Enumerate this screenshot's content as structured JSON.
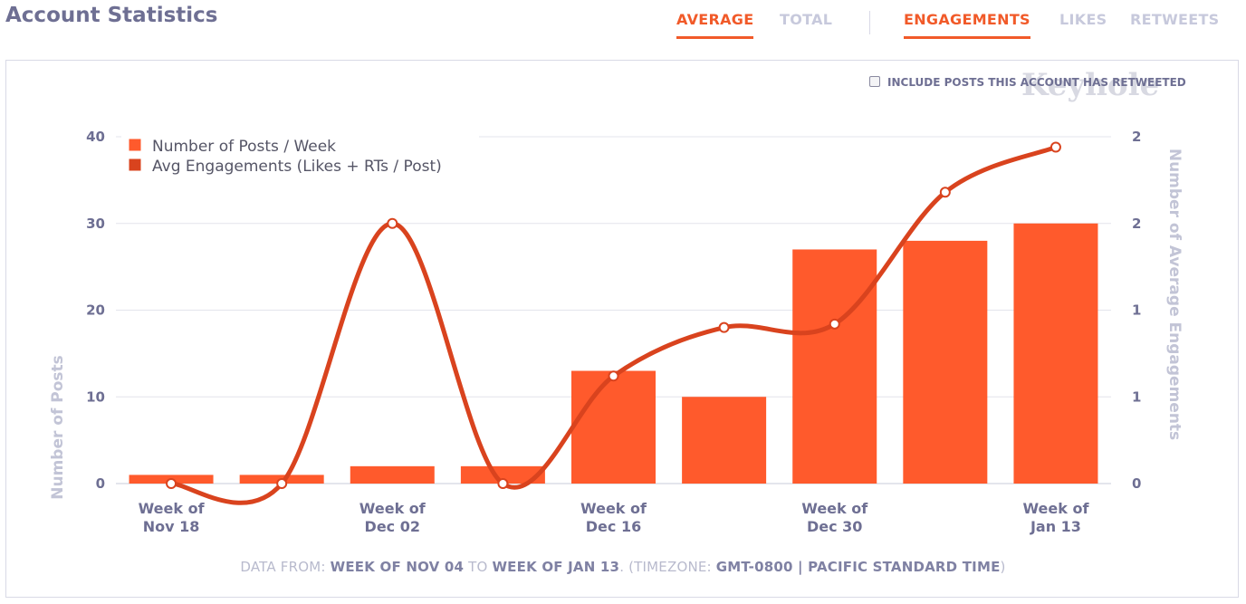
{
  "header": {
    "title": "Account Statistics",
    "metric_tabs": [
      {
        "label": "AVERAGE",
        "active": true
      },
      {
        "label": "TOTAL",
        "active": false
      }
    ],
    "type_tabs": [
      {
        "label": "ENGAGEMENTS",
        "active": true
      },
      {
        "label": "LIKES",
        "active": false
      },
      {
        "label": "RETWEETS",
        "active": false
      }
    ]
  },
  "options": {
    "include_retweets_label": "INCLUDE POSTS THIS ACCOUNT HAS RETWEETED",
    "include_retweets_checked": false
  },
  "watermark": "Keyhole",
  "colors": {
    "accent": "#f15a29",
    "bar": "#ff5a2c",
    "line": "#d9431e",
    "axis_text": "#6e6f93",
    "axis_title": "#c2c4d6"
  },
  "chart_data": {
    "type": "bar",
    "categories": [
      "Week of Nov 18",
      "",
      "Week of Dec 02",
      "",
      "Week of Dec 16",
      "",
      "Week of Dec 30",
      "",
      "Week of Jan 13"
    ],
    "x_tick_lines": [
      [
        "Week of",
        "Nov 18"
      ],
      [
        "",
        ""
      ],
      [
        "Week of",
        "Dec 02"
      ],
      [
        "",
        ""
      ],
      [
        "Week of",
        "Dec 16"
      ],
      [
        "",
        ""
      ],
      [
        "Week of",
        "Dec 30"
      ],
      [
        "",
        ""
      ],
      [
        "Week of",
        "Jan 13"
      ]
    ],
    "series": [
      {
        "name": "Number of Posts / Week",
        "type": "bar",
        "axis": "left",
        "values": [
          1,
          1,
          2,
          2,
          13,
          10,
          27,
          28,
          30
        ]
      },
      {
        "name": "Avg Engagements (Likes + RTs / Post)",
        "type": "line",
        "axis": "right",
        "values": [
          0,
          0,
          1.5,
          0,
          0.62,
          0.9,
          0.92,
          1.68,
          1.94
        ]
      }
    ],
    "ylabel": "Number of Posts",
    "ylim": [
      0,
      40
    ],
    "y_ticks": [
      0,
      10,
      20,
      30,
      40
    ],
    "y2label": "Number of Average Engagements",
    "y2lim": [
      0,
      2
    ],
    "y2_ticks": [
      0,
      0.5,
      1,
      1.5,
      2
    ],
    "y2_tick_labels": [
      "0",
      "1",
      "1",
      "2",
      "2"
    ],
    "grid": true,
    "legend_position": "top-left"
  },
  "footer": {
    "prefix": "DATA FROM: ",
    "start": "WEEK OF NOV 04",
    "mid": " TO ",
    "end": "WEEK OF JAN 13",
    "tz_prefix": ". (TIMEZONE: ",
    "tz": "GMT-0800 | PACIFIC STANDARD TIME",
    "suffix": ")"
  }
}
